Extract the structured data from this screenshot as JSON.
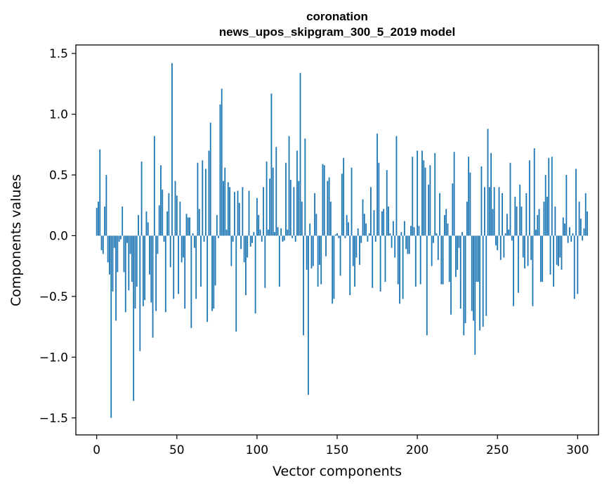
{
  "chart_data": {
    "type": "bar",
    "title": "coronation",
    "subtitle": "news_upos_skipgram_300_5_2019 model",
    "xlabel": "Vector components",
    "ylabel": "Components values",
    "xlim": [
      -13,
      313
    ],
    "ylim": [
      -1.64,
      1.57
    ],
    "xticks": [
      0,
      50,
      100,
      150,
      200,
      250,
      300
    ],
    "yticks": [
      -1.5,
      -1.0,
      -0.5,
      0.0,
      0.5,
      1.0,
      1.5
    ],
    "ytick_labels": [
      "−1.5",
      "−1.0",
      "−0.5",
      "0.0",
      "0.5",
      "1.0",
      "1.5"
    ],
    "bar_color": "#1f77b4",
    "grid": false,
    "values": [
      0.23,
      0.28,
      0.71,
      -0.12,
      -0.15,
      0.24,
      0.5,
      -0.22,
      -0.32,
      -1.5,
      -0.46,
      -0.1,
      -0.7,
      -0.3,
      -0.05,
      -0.03,
      0.24,
      -0.3,
      -0.63,
      -0.06,
      -0.45,
      -0.15,
      -0.38,
      -1.36,
      -0.6,
      -0.42,
      0.17,
      -0.95,
      0.61,
      -0.58,
      -0.53,
      0.2,
      0.11,
      -0.32,
      -0.55,
      -0.84,
      0.82,
      -0.62,
      -0.15,
      0.25,
      0.58,
      0.38,
      -0.05,
      -0.63,
      0.2,
      0.35,
      -0.26,
      1.42,
      -0.52,
      0.45,
      0.33,
      -0.48,
      0.28,
      -0.22,
      -0.18,
      -0.6,
      0.18,
      0.15,
      0.15,
      -0.76,
      0.02,
      -0.1,
      -0.52,
      0.6,
      0.22,
      -0.42,
      0.62,
      -0.05,
      0.55,
      -0.71,
      0.7,
      0.93,
      -0.62,
      -0.6,
      -0.41,
      0.17,
      -0.02,
      1.08,
      1.21,
      0.45,
      0.56,
      0.05,
      0.44,
      0.4,
      -0.25,
      -0.05,
      0.36,
      -0.79,
      0.37,
      0.27,
      -0.11,
      0.4,
      -0.22,
      -0.49,
      -0.18,
      0.37,
      -0.09,
      -0.06,
      0.03,
      -0.64,
      0.31,
      0.17,
      0.05,
      -0.05,
      0.4,
      -0.43,
      0.61,
      0.05,
      0.47,
      1.17,
      0.56,
      0.03,
      0.73,
      0.07,
      -0.42,
      0.06,
      -0.05,
      -0.04,
      0.6,
      0.05,
      0.82,
      0.46,
      -0.02,
      0.4,
      -0.05,
      0.7,
      0.45,
      1.34,
      0.28,
      -0.82,
      0.8,
      -0.28,
      -1.31,
      0.1,
      -0.27,
      -0.25,
      0.35,
      0.18,
      -0.42,
      -0.24,
      -0.4,
      0.59,
      0.58,
      -0.17,
      0.45,
      0.48,
      0.28,
      -0.56,
      -0.52,
      0.01,
      0.02,
      -0.02,
      -0.33,
      0.51,
      0.64,
      -0.02,
      0.17,
      0.11,
      -0.49,
      0.56,
      -0.25,
      -0.42,
      -0.18,
      0.06,
      -0.24,
      -0.06,
      0.3,
      0.18,
      0.1,
      -0.05,
      0.02,
      0.4,
      -0.43,
      0.21,
      -0.05,
      0.84,
      0.6,
      -0.46,
      0.2,
      0.22,
      -0.38,
      0.54,
      0.24,
      0.02,
      -0.1,
      0.12,
      -0.18,
      0.82,
      -0.4,
      -0.56,
      0.03,
      -0.52,
      0.12,
      -0.11,
      -0.15,
      -0.15,
      0.08,
      0.65,
      0.07,
      -0.42,
      0.7,
      0.08,
      -0.4,
      0.7,
      0.62,
      0.56,
      -0.82,
      0.42,
      0.58,
      -0.25,
      -0.06,
      0.68,
      0.02,
      -0.2,
      0.35,
      -0.4,
      -0.4,
      0.17,
      0.22,
      0.1,
      -0.38,
      -0.65,
      0.43,
      0.69,
      -0.34,
      -0.28,
      -0.1,
      -0.6,
      0.03,
      -0.82,
      -0.72,
      0.28,
      0.65,
      0.52,
      -0.62,
      -0.7,
      -0.98,
      -0.38,
      -0.38,
      -0.78,
      0.57,
      -0.75,
      0.4,
      -0.66,
      0.88,
      0.4,
      0.68,
      0.22,
      0.4,
      -0.08,
      -0.12,
      0.4,
      -0.2,
      0.35,
      -0.18,
      0.02,
      0.18,
      0.05,
      0.6,
      -0.04,
      -0.58,
      0.32,
      0.24,
      -0.47,
      0.42,
      0.24,
      -0.18,
      -0.27,
      0.35,
      -0.25,
      0.62,
      -0.2,
      -0.58,
      0.72,
      0.05,
      0.17,
      0.22,
      -0.38,
      -0.38,
      0.28,
      0.5,
      0.32,
      0.64,
      -0.32,
      0.65,
      -0.42,
      0.24,
      -0.24,
      -0.25,
      -0.18,
      -0.28,
      0.15,
      0.1,
      0.5,
      -0.06,
      0.07,
      -0.05,
      0.02,
      -0.52,
      0.55,
      -0.48,
      0.28,
      0.14,
      -0.04,
      0.06,
      0.35,
      0.2
    ]
  }
}
